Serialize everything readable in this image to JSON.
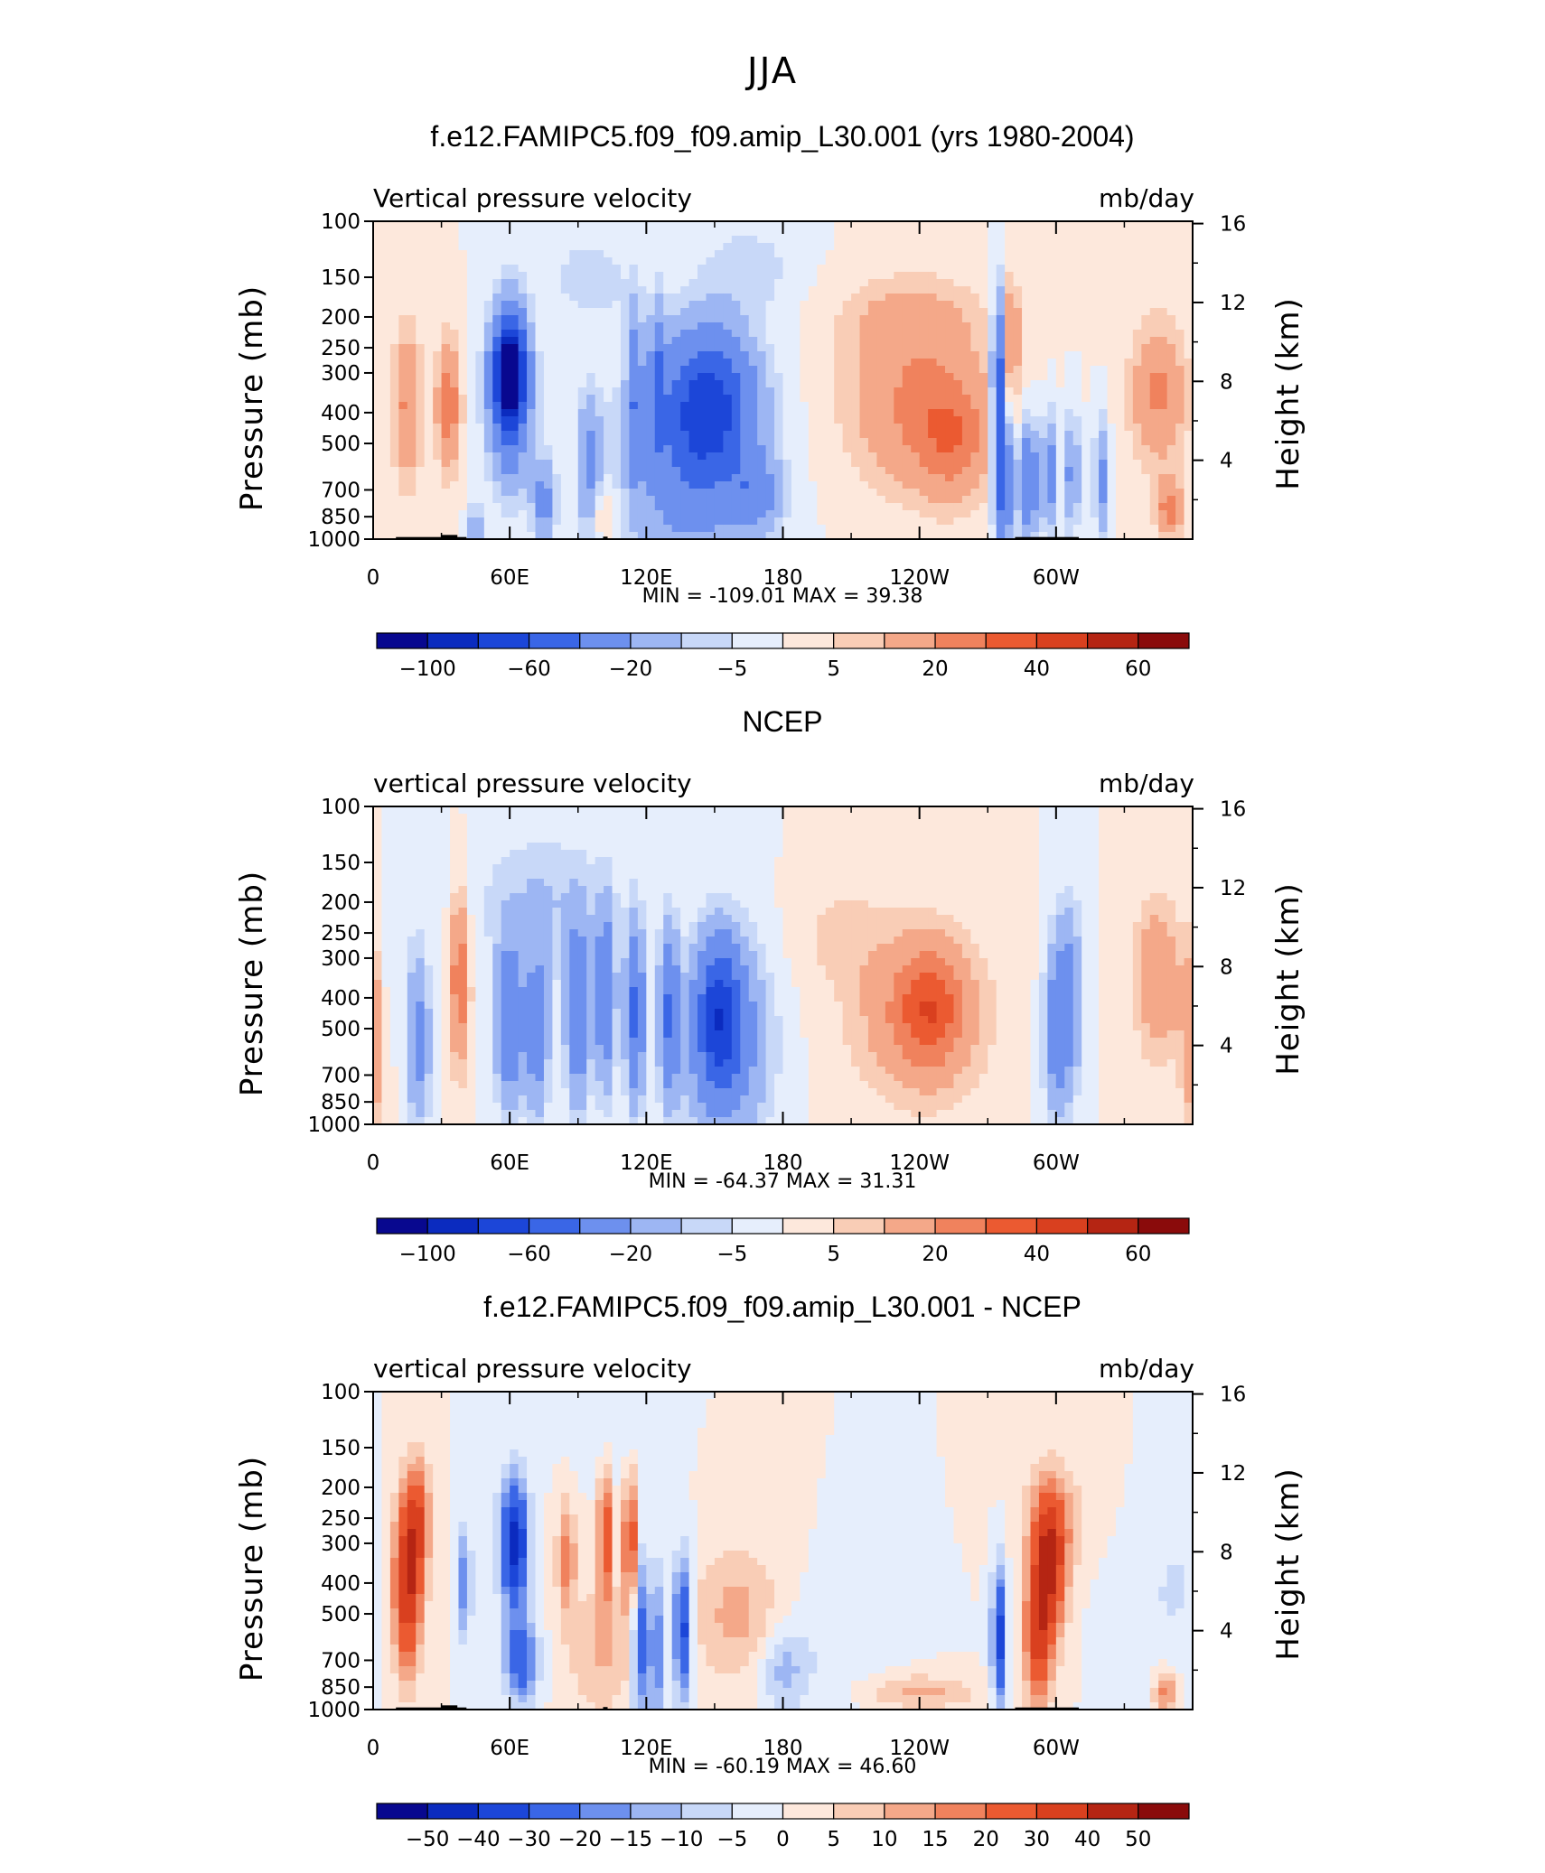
{
  "suptitle": "JJA",
  "chart_data": [
    {
      "type": "heatmap",
      "title": "f.e12.FAMIPC5.f09_f09.amip_L30.001 (yrs 1980-2004)",
      "left_label": "Vertical pressure velocity",
      "right_label": "mb/day",
      "ylabel": "Pressure (mb)",
      "ylabel_right": "Height (km)",
      "x_ticks": [
        "0",
        "60E",
        "120E",
        "180",
        "120W",
        "60W"
      ],
      "x_tick_values": [
        0,
        60,
        120,
        180,
        240,
        300
      ],
      "xlim": [
        0,
        360
      ],
      "y_ticks": [
        "100",
        "150",
        "200",
        "250",
        "300",
        "400",
        "500",
        "700",
        "850",
        "1000"
      ],
      "y_tick_values": [
        100,
        150,
        200,
        250,
        300,
        400,
        500,
        700,
        850,
        1000
      ],
      "ylim": [
        1000,
        100
      ],
      "y_scale": "log",
      "right_ticks": [
        "4",
        "8",
        "12",
        "16"
      ],
      "right_tick_values": [
        4,
        8,
        12,
        16
      ],
      "stats": {
        "min_label": "MIN =",
        "min": "-109.01",
        "max_label": "MAX =",
        "max": "39.38"
      },
      "levels": [
        "-100",
        "-60",
        "-20",
        "-5",
        "5",
        "20",
        "40",
        "60"
      ],
      "colors": [
        "#08088f",
        "#0b2bbf",
        "#1c46d8",
        "#3a66e6",
        "#6d90ee",
        "#9db6f3",
        "#c8d8f8",
        "#e6eefc",
        "#fde8dc",
        "#f9cdb6",
        "#f4a889",
        "#f0825d",
        "#eb5a31",
        "#d9401f",
        "#b52513",
        "#8a0b0b"
      ],
      "mask": true
    },
    {
      "type": "heatmap",
      "title": "NCEP",
      "left_label": "vertical pressure velocity",
      "right_label": "mb/day",
      "ylabel": "Pressure (mb)",
      "ylabel_right": "Height (km)",
      "x_ticks": [
        "0",
        "60E",
        "120E",
        "180",
        "120W",
        "60W"
      ],
      "x_tick_values": [
        0,
        60,
        120,
        180,
        240,
        300
      ],
      "xlim": [
        0,
        360
      ],
      "y_ticks": [
        "100",
        "150",
        "200",
        "250",
        "300",
        "400",
        "500",
        "700",
        "850",
        "1000"
      ],
      "y_tick_values": [
        100,
        150,
        200,
        250,
        300,
        400,
        500,
        700,
        850,
        1000
      ],
      "ylim": [
        1000,
        100
      ],
      "y_scale": "log",
      "right_ticks": [
        "4",
        "8",
        "12",
        "16"
      ],
      "right_tick_values": [
        4,
        8,
        12,
        16
      ],
      "stats": {
        "min_label": "MIN =",
        "min": "-64.37",
        "max_label": "MAX =",
        "max": "31.31"
      },
      "levels": [
        "-100",
        "-60",
        "-20",
        "-5",
        "5",
        "20",
        "40",
        "60"
      ],
      "colors": [
        "#08088f",
        "#0b2bbf",
        "#1c46d8",
        "#3a66e6",
        "#6d90ee",
        "#9db6f3",
        "#c8d8f8",
        "#e6eefc",
        "#fde8dc",
        "#f9cdb6",
        "#f4a889",
        "#f0825d",
        "#eb5a31",
        "#d9401f",
        "#b52513",
        "#8a0b0b"
      ],
      "mask": false
    },
    {
      "type": "heatmap",
      "title": "f.e12.FAMIPC5.f09_f09.amip_L30.001 - NCEP",
      "left_label": "vertical pressure velocity",
      "right_label": "mb/day",
      "ylabel": "Pressure (mb)",
      "ylabel_right": "Height (km)",
      "x_ticks": [
        "0",
        "60E",
        "120E",
        "180",
        "120W",
        "60W"
      ],
      "x_tick_values": [
        0,
        60,
        120,
        180,
        240,
        300
      ],
      "xlim": [
        0,
        360
      ],
      "y_ticks": [
        "100",
        "150",
        "200",
        "250",
        "300",
        "400",
        "500",
        "700",
        "850",
        "1000"
      ],
      "y_tick_values": [
        100,
        150,
        200,
        250,
        300,
        400,
        500,
        700,
        850,
        1000
      ],
      "ylim": [
        1000,
        100
      ],
      "y_scale": "log",
      "right_ticks": [
        "4",
        "8",
        "12",
        "16"
      ],
      "right_tick_values": [
        4,
        8,
        12,
        16
      ],
      "stats": {
        "min_label": "MIN =",
        "min": "-60.19",
        "max_label": "MAX =",
        "max": "46.60"
      },
      "levels": [
        "-50",
        "-40",
        "-30",
        "-20",
        "-15",
        "-10",
        "-5",
        "0",
        "5",
        "10",
        "15",
        "20",
        "30",
        "40",
        "50"
      ],
      "colors": [
        "#08088f",
        "#0b2bbf",
        "#1c46d8",
        "#3a66e6",
        "#6d90ee",
        "#9db6f3",
        "#c8d8f8",
        "#e6eefc",
        "#fde8dc",
        "#f9cdb6",
        "#f4a889",
        "#f0825d",
        "#eb5a31",
        "#d9401f",
        "#b52513",
        "#8a0b0b"
      ],
      "mask": true
    }
  ]
}
